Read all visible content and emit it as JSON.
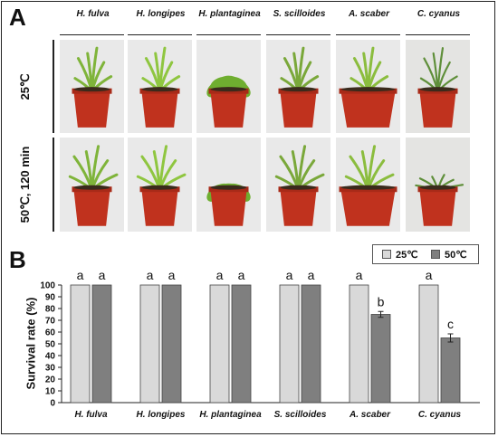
{
  "panel_a_letter": "A",
  "panel_b_letter": "B",
  "species": [
    "H. fulva",
    "H. longipes",
    "H. plantaginea",
    "S. scilloides",
    "A. scaber",
    "C. cyanus"
  ],
  "rows": [
    "25℃",
    "50℃, 120 min"
  ],
  "legend": {
    "label_25": "25℃",
    "label_50": "50℃",
    "color_25": "#d9d9d9",
    "color_50": "#7f7f7f"
  },
  "chart_data": {
    "type": "bar",
    "categories": [
      "H. fulva",
      "H. longipes",
      "H. plantaginea",
      "S. scilloides",
      "A. scaber",
      "C. cyanus"
    ],
    "series": [
      {
        "name": "25℃",
        "values": [
          100,
          100,
          100,
          100,
          100,
          100
        ],
        "errors": [
          0,
          0,
          0,
          0,
          0,
          0
        ],
        "color": "#d9d9d9"
      },
      {
        "name": "50℃",
        "values": [
          100,
          100,
          100,
          100,
          75,
          55
        ],
        "errors": [
          0,
          0,
          0,
          0,
          2.5,
          3.5
        ],
        "color": "#7f7f7f"
      }
    ],
    "significance": [
      [
        "a",
        "a"
      ],
      [
        "a",
        "a"
      ],
      [
        "a",
        "a"
      ],
      [
        "a",
        "a"
      ],
      [
        "a",
        "b"
      ],
      [
        "a",
        "c"
      ]
    ],
    "ylabel": "Survival rate (%)",
    "ylim": [
      0,
      100
    ],
    "yticks": [
      0,
      10,
      20,
      30,
      40,
      50,
      60,
      70,
      80,
      90,
      100
    ],
    "legend_position": "top-right"
  }
}
